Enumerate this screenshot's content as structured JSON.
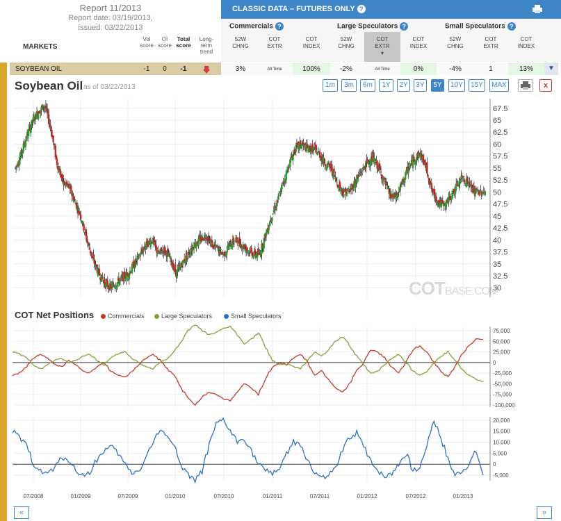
{
  "report": {
    "title": "Report 11/2013",
    "date": "Report date: 03/19/2013,",
    "issued": "issued: 03/22/2013"
  },
  "table": {
    "markets_label": "MARKETS",
    "col_vol": "Vol score",
    "col_oi": "OI score",
    "col_total": "Total score",
    "col_trend": "Long-term trend",
    "classic_title": "CLASSIC DATA – FUTURES ONLY",
    "groups": [
      "Commercials",
      "Large Speculators",
      "Small Speculators"
    ],
    "sub_headers": [
      "52W CHNG",
      "COT EXTR",
      "COT INDEX",
      "52W CHNG",
      "COT EXTR",
      "COT INDEX",
      "52W CHNG",
      "COT EXTR",
      "COT INDEX"
    ],
    "row": {
      "market": "SOYBEAN OIL",
      "vol": "-1",
      "oi": "0",
      "total": "-1",
      "trend": "down",
      "cells": [
        "3%",
        "All Time",
        "100%",
        "-2%",
        "All Time",
        "0%",
        "-4%",
        "1",
        "13%"
      ]
    }
  },
  "chart": {
    "title": "Soybean Oil",
    "asof": "as of 03/22/2013",
    "ranges": [
      "1m",
      "3m",
      "6m",
      "1Y",
      "2Y",
      "3Y",
      "5Y",
      "10Y",
      "15Y",
      "MAX"
    ],
    "selected_range": "5Y",
    "watermark_main": "COT",
    "watermark_sub": "BASE.COM"
  },
  "cot": {
    "title": "COT Net Positions",
    "legend": [
      "Commercials",
      "Large Speculators",
      "Small Speculators"
    ],
    "colors": {
      "commercials": "#c0392b",
      "large": "#7fa33a",
      "small": "#2f6fbf",
      "up": "#2e9e2e",
      "down": "#c62828"
    }
  },
  "chart_data": [
    {
      "type": "line",
      "title": "Soybean Oil",
      "x_ticks": [
        "07/2008",
        "01/2009",
        "07/2009",
        "01/2010",
        "07/2010",
        "01/2011",
        "07/2011",
        "01/2012",
        "07/2012",
        "01/2013"
      ],
      "y_ticks": [
        30,
        32.5,
        35,
        37.5,
        40,
        42.5,
        45,
        47.5,
        50,
        52.5,
        55,
        57.5,
        60,
        62.5,
        65,
        67.5
      ],
      "ylim": [
        28,
        69.5
      ],
      "series": [
        {
          "values": [
            55,
            58,
            62,
            65,
            67,
            68,
            63,
            56,
            52,
            51,
            48,
            45,
            40,
            36,
            33,
            31,
            30,
            31,
            32,
            33,
            35,
            37,
            39,
            40,
            37,
            38,
            36,
            33,
            35,
            37,
            39,
            40,
            41,
            39,
            38,
            37,
            39,
            40,
            39,
            38,
            37,
            37,
            41,
            45,
            48,
            52,
            56,
            59,
            60,
            59,
            59,
            58,
            56,
            55,
            52,
            50,
            50,
            52,
            54,
            56,
            57,
            55,
            52,
            49,
            49,
            52,
            55,
            57,
            58,
            55,
            50,
            48,
            47,
            49,
            51,
            53,
            52,
            50,
            50
          ]
        }
      ]
    },
    {
      "type": "line",
      "title": "COT Net Positions",
      "y_ticks": [
        -100000,
        -75000,
        -50000,
        -25000,
        0,
        25000,
        50000,
        75000
      ],
      "ylim": [
        -105000,
        85000
      ],
      "series": [
        {
          "name": "Commercials",
          "values": [
            -30000,
            -25000,
            -10000,
            10000,
            20000,
            10000,
            -5000,
            -10000,
            5000,
            -5000,
            -20000,
            -25000,
            -10000,
            0,
            -20000,
            -30000,
            -35000,
            -20000,
            -5000,
            10000,
            20000,
            5000,
            -15000,
            -30000,
            -60000,
            -85000,
            -100000,
            -80000,
            -70000,
            -75000,
            -85000,
            -90000,
            -70000,
            -50000,
            -60000,
            -75000,
            -40000,
            -10000,
            0,
            -5000,
            10000,
            20000,
            0,
            -30000,
            -20000,
            -40000,
            -60000,
            -70000,
            -50000,
            -20000,
            0,
            30000,
            25000,
            10000,
            -10000,
            -25000,
            0,
            30000,
            40000,
            25000,
            0,
            -20000,
            -35000,
            -10000,
            20000,
            40000,
            55000,
            55000
          ]
        },
        {
          "name": "Large Speculators",
          "values": [
            25000,
            20000,
            10000,
            -5000,
            -15000,
            -5000,
            5000,
            10000,
            0,
            5000,
            15000,
            20000,
            5000,
            -5000,
            10000,
            20000,
            25000,
            10000,
            0,
            -10000,
            -15000,
            0,
            10000,
            25000,
            50000,
            75000,
            90000,
            75000,
            65000,
            70000,
            80000,
            85000,
            65000,
            45000,
            55000,
            70000,
            35000,
            5000,
            -5000,
            0,
            -10000,
            -15000,
            5000,
            25000,
            15000,
            30000,
            50000,
            60000,
            40000,
            15000,
            -5000,
            -25000,
            -20000,
            -5000,
            10000,
            20000,
            0,
            -20000,
            -30000,
            -20000,
            0,
            15000,
            25000,
            5000,
            -15000,
            -30000,
            -40000,
            -45000
          ]
        },
        {
          "name": "Small Speculators",
          "values": [
            15000,
            12000,
            8000,
            0,
            -3000,
            -4000,
            -2000,
            3000,
            2000,
            -3000,
            -5000,
            -4000,
            2000,
            6000,
            8000,
            5000,
            0,
            -4000,
            -3000,
            3000,
            10000,
            15000,
            14000,
            8000,
            0,
            -5000,
            -7000,
            -3000,
            8000,
            18000,
            20000,
            15000,
            10000,
            12000,
            6000,
            0,
            -3000,
            -4000,
            -2000,
            5000,
            10000,
            8000,
            2000,
            -4000,
            -6000,
            -5000,
            -2000,
            6000,
            12000,
            14000,
            8000,
            2000,
            -3000,
            -6000,
            -4000,
            0,
            5000,
            -3000,
            -2000,
            10000,
            20000,
            12000,
            2000,
            -5000,
            -3000,
            0,
            6000,
            -5000
          ]
        }
      ]
    }
  ]
}
